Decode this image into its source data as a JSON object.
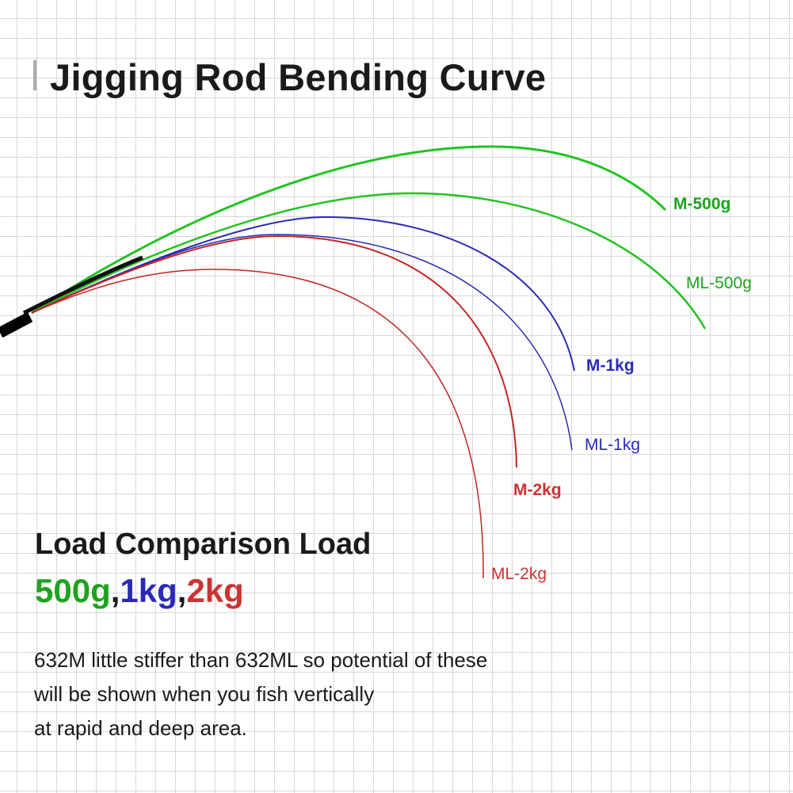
{
  "title": "Jigging Rod Bending Curve",
  "curves": [
    {
      "label": "M-500g",
      "color": "#22c322"
    },
    {
      "label": "ML-500g",
      "color": "#22c322"
    },
    {
      "label": "M-1kg",
      "color": "#2a2ab0"
    },
    {
      "label": "ML-1kg",
      "color": "#2a2ab0"
    },
    {
      "label": "M-2kg",
      "color": "#c42424"
    },
    {
      "label": "ML-2kg",
      "color": "#c42424"
    }
  ],
  "heading": "Load Comparison Load",
  "loads": [
    {
      "text": "500g",
      "color": "#1ea31e"
    },
    {
      "text": ",",
      "color": "#1a1a1a"
    },
    {
      "text": "1kg",
      "color": "#2a2ab8"
    },
    {
      "text": ",",
      "color": "#1a1a1a"
    },
    {
      "text": "2kg",
      "color": "#cc3333"
    }
  ],
  "description": [
    "632M little stiffer than 632ML so potential of these",
    "will be shown when you fish vertically",
    "at rapid and deep area."
  ]
}
